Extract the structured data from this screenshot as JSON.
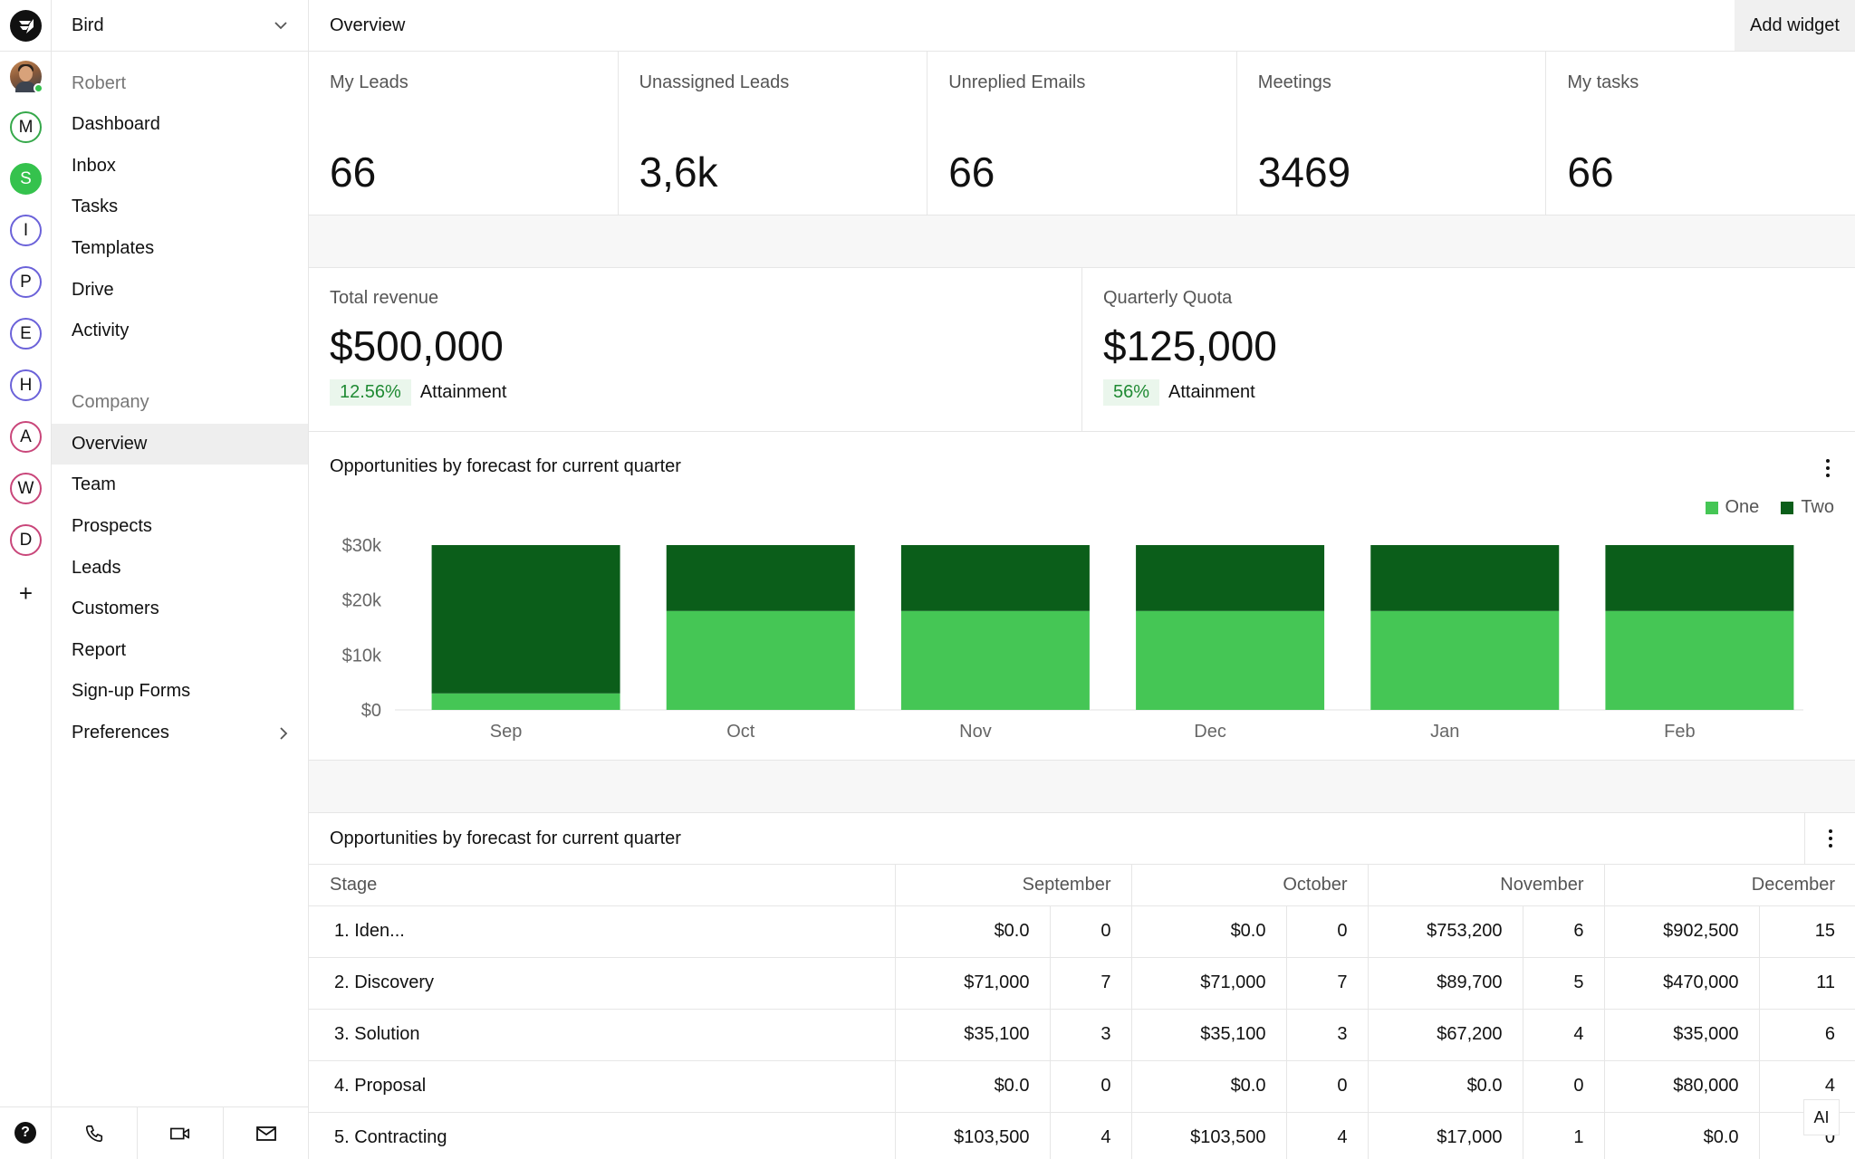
{
  "workspace": {
    "name": "Bird"
  },
  "rail": {
    "workspaces": [
      {
        "letter": "M",
        "color": "#35a84a",
        "filled": false
      },
      {
        "letter": "S",
        "color": "#35c24d",
        "filled": true
      },
      {
        "letter": "I",
        "color": "#6b62d9",
        "filled": false
      },
      {
        "letter": "P",
        "color": "#6b62d9",
        "filled": false
      },
      {
        "letter": "E",
        "color": "#6b62d9",
        "filled": false
      },
      {
        "letter": "H",
        "color": "#6b62d9",
        "filled": false
      },
      {
        "letter": "A",
        "color": "#c9467a",
        "filled": false
      },
      {
        "letter": "W",
        "color": "#c9467a",
        "filled": false
      },
      {
        "letter": "D",
        "color": "#c9467a",
        "filled": false
      }
    ],
    "add_label": "+",
    "help_label": "?"
  },
  "sidebar": {
    "personal_label": "Robert",
    "personal_items": [
      "Dashboard",
      "Inbox",
      "Tasks",
      "Templates",
      "Drive",
      "Activity"
    ],
    "company_label": "Company",
    "company_items": [
      "Overview",
      "Team",
      "Prospects",
      "Leads",
      "Customers",
      "Report",
      "Sign-up Forms",
      "Preferences"
    ],
    "active_item": "Overview"
  },
  "topbar": {
    "title": "Overview",
    "add_widget_label": "Add widget"
  },
  "stats": [
    {
      "label": "My Leads",
      "value": "66"
    },
    {
      "label": "Unassigned Leads",
      "value": "3,6k"
    },
    {
      "label": "Unreplied Emails",
      "value": "66"
    },
    {
      "label": "Meetings",
      "value": "3469"
    },
    {
      "label": "My tasks",
      "value": "66"
    }
  ],
  "revenue": [
    {
      "label": "Total revenue",
      "amount": "$500,000",
      "pct": "12.56%",
      "attainment_label": "Attainment"
    },
    {
      "label": "Quarterly Quota",
      "amount": "$125,000",
      "pct": "56%",
      "attainment_label": "Attainment"
    }
  ],
  "chart_title": "Opportunities by forecast for current quarter",
  "colors": {
    "one": "#45c655",
    "two": "#0b5e1a"
  },
  "chart_data": {
    "type": "bar",
    "stacked": true,
    "categories": [
      "Sep",
      "Oct",
      "Nov",
      "Dec",
      "Jan",
      "Feb"
    ],
    "series": [
      {
        "name": "One",
        "values": [
          3000,
          18000,
          18000,
          18000,
          18000,
          18000
        ]
      },
      {
        "name": "Two",
        "values": [
          27000,
          12000,
          12000,
          12000,
          12000,
          12000
        ]
      }
    ],
    "yticks": [
      "$0",
      "$10k",
      "$20k",
      "$30k"
    ],
    "ylim": [
      0,
      30000
    ],
    "legend_position": "top-right",
    "grid": false
  },
  "table": {
    "title": "Opportunities by forecast for current quarter",
    "columns": [
      "Stage",
      "September",
      "October",
      "November",
      "December"
    ],
    "rows": [
      {
        "stage": "1. Iden...",
        "cells": [
          [
            "$0.0",
            "0"
          ],
          [
            "$0.0",
            "0"
          ],
          [
            "$753,200",
            "6"
          ],
          [
            "$902,500",
            "15"
          ]
        ]
      },
      {
        "stage": "2. Discovery",
        "cells": [
          [
            "$71,000",
            "7"
          ],
          [
            "$71,000",
            "7"
          ],
          [
            "$89,700",
            "5"
          ],
          [
            "$470,000",
            "11"
          ]
        ]
      },
      {
        "stage": "3. Solution",
        "cells": [
          [
            "$35,100",
            "3"
          ],
          [
            "$35,100",
            "3"
          ],
          [
            "$67,200",
            "4"
          ],
          [
            "$35,000",
            "6"
          ]
        ]
      },
      {
        "stage": "4. Proposal",
        "cells": [
          [
            "$0.0",
            "0"
          ],
          [
            "$0.0",
            "0"
          ],
          [
            "$0.0",
            "0"
          ],
          [
            "$80,000",
            "4"
          ]
        ]
      },
      {
        "stage": "5. Contracting",
        "cells": [
          [
            "$103,500",
            "4"
          ],
          [
            "$103,500",
            "4"
          ],
          [
            "$17,000",
            "1"
          ],
          [
            "$0.0",
            "0"
          ]
        ]
      }
    ]
  },
  "ai_label": "AI"
}
